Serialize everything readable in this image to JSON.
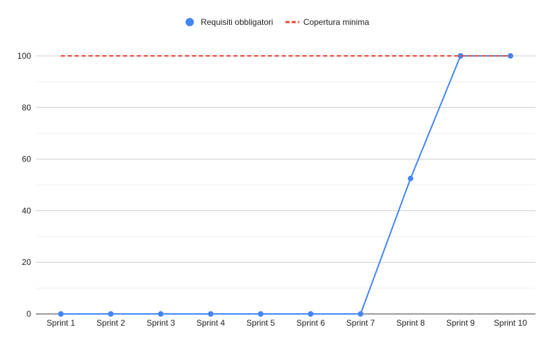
{
  "chart_data": {
    "type": "line",
    "title": "",
    "xlabel": "",
    "ylabel": "",
    "categories": [
      "Sprint 1",
      "Sprint 2",
      "Sprint 3",
      "Sprint 4",
      "Sprint 5",
      "Sprint 6",
      "Sprint 7",
      "Sprint 8",
      "Sprint 9",
      "Sprint 10"
    ],
    "ylim": [
      0,
      100
    ],
    "yticks": [
      0,
      20,
      40,
      60,
      80,
      100
    ],
    "grid": true,
    "legend_position": "top",
    "series": [
      {
        "name": "Requisiti obbligatori",
        "style": "solid-with-markers",
        "color": "#4285f4",
        "values": [
          0,
          0,
          0,
          0,
          0,
          0,
          0,
          52.5,
          100,
          100
        ]
      },
      {
        "name": "Copertura minima",
        "style": "dashed",
        "color": "#ea4335",
        "values": [
          100,
          100,
          100,
          100,
          100,
          100,
          100,
          100,
          100,
          100
        ]
      }
    ]
  }
}
